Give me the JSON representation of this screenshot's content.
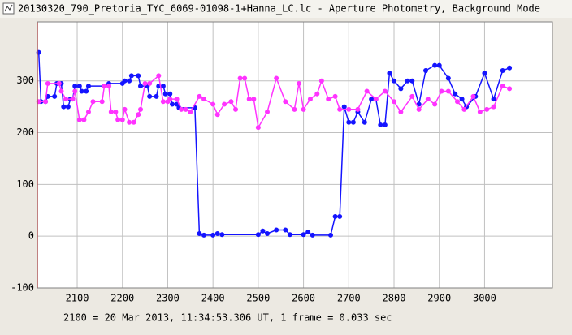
{
  "chart_data": {
    "type": "line",
    "title": "20130320_790_Pretoria_TYC_6069-01098-1+Hanna_LC.lc - Aperture Photometry, Background Mode",
    "footer": "2100 = 20 Mar 2013, 11:34:53.306 UT, 1 frame = 0.033 sec",
    "xlim": [
      2012,
      3150
    ],
    "ylim": [
      -100,
      414
    ],
    "xticks": [
      2100,
      2200,
      2300,
      2400,
      2500,
      2600,
      2700,
      2800,
      2900,
      3000
    ],
    "yticks": [
      -100,
      0,
      100,
      200,
      300
    ],
    "grid": true,
    "series": [
      {
        "color": "#1414ff",
        "x": [
          2015,
          2020,
          2030,
          2035,
          2050,
          2055,
          2065,
          2070,
          2080,
          2085,
          2090,
          2095,
          2105,
          2110,
          2120,
          2125,
          2160,
          2170,
          2200,
          2205,
          2215,
          2220,
          2235,
          2240,
          2255,
          2260,
          2275,
          2280,
          2290,
          2295,
          2305,
          2310,
          2320,
          2325,
          2360,
          2370,
          2380,
          2400,
          2410,
          2420,
          2500,
          2510,
          2520,
          2540,
          2560,
          2570,
          2600,
          2610,
          2620,
          2660,
          2670,
          2680,
          2690,
          2700,
          2710,
          2720,
          2735,
          2750,
          2760,
          2770,
          2780,
          2790,
          2800,
          2815,
          2830,
          2840,
          2855,
          2870,
          2890,
          2900,
          2920,
          2935,
          2950,
          2960,
          2980,
          3000,
          3020,
          3040,
          3055
        ],
        "values": [
          355,
          260,
          260,
          270,
          270,
          295,
          295,
          250,
          250,
          265,
          265,
          290,
          290,
          280,
          280,
          290,
          290,
          295,
          295,
          300,
          300,
          310,
          310,
          290,
          290,
          270,
          270,
          290,
          290,
          275,
          275,
          255,
          255,
          248,
          248,
          5,
          2,
          2,
          5,
          3,
          3,
          10,
          5,
          12,
          12,
          3,
          3,
          8,
          2,
          2,
          38,
          38,
          250,
          220,
          220,
          240,
          220,
          265,
          265,
          215,
          215,
          315,
          300,
          285,
          300,
          300,
          255,
          320,
          330,
          330,
          305,
          275,
          265,
          250,
          270,
          315,
          265,
          320,
          325
        ]
      },
      {
        "color": "#ff33ff",
        "x": [
          2015,
          2030,
          2035,
          2060,
          2065,
          2075,
          2090,
          2095,
          2105,
          2115,
          2125,
          2135,
          2155,
          2160,
          2170,
          2175,
          2185,
          2190,
          2200,
          2205,
          2215,
          2225,
          2235,
          2240,
          2250,
          2260,
          2280,
          2290,
          2300,
          2305,
          2320,
          2330,
          2340,
          2350,
          2370,
          2380,
          2400,
          2410,
          2425,
          2440,
          2450,
          2460,
          2470,
          2480,
          2490,
          2500,
          2520,
          2540,
          2560,
          2580,
          2590,
          2600,
          2615,
          2630,
          2640,
          2655,
          2670,
          2680,
          2700,
          2720,
          2740,
          2760,
          2780,
          2800,
          2815,
          2840,
          2855,
          2875,
          2890,
          2905,
          2920,
          2940,
          2955,
          2975,
          2990,
          3005,
          3020,
          3040,
          3055
        ],
        "values": [
          260,
          260,
          295,
          295,
          280,
          265,
          265,
          280,
          225,
          225,
          240,
          260,
          260,
          290,
          290,
          240,
          240,
          225,
          225,
          245,
          220,
          220,
          235,
          245,
          295,
          295,
          310,
          260,
          260,
          265,
          265,
          245,
          245,
          240,
          270,
          265,
          255,
          235,
          255,
          260,
          245,
          305,
          305,
          265,
          265,
          210,
          240,
          305,
          260,
          245,
          295,
          245,
          265,
          275,
          300,
          265,
          270,
          245,
          245,
          245,
          280,
          265,
          280,
          260,
          240,
          270,
          245,
          265,
          255,
          280,
          280,
          260,
          245,
          270,
          240,
          245,
          250,
          290,
          285
        ]
      }
    ]
  }
}
